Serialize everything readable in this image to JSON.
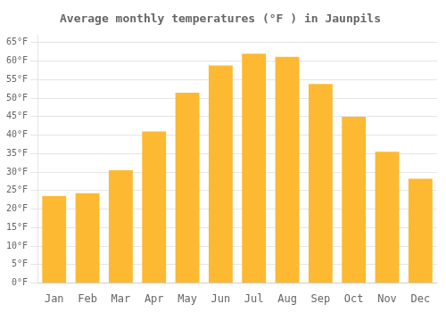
{
  "chart_data": {
    "type": "bar",
    "title": "Average monthly temperatures (°F ) in Jaunpils",
    "categories": [
      "Jan",
      "Feb",
      "Mar",
      "Apr",
      "May",
      "Jun",
      "Jul",
      "Aug",
      "Sep",
      "Oct",
      "Nov",
      "Dec"
    ],
    "values": [
      23.5,
      24.3,
      30.5,
      41.0,
      51.5,
      58.8,
      62.0,
      61.2,
      53.8,
      45.0,
      35.5,
      28.2
    ],
    "color": "#FDB931",
    "ylim": [
      0,
      67
    ],
    "yticks": [
      {
        "value": 0,
        "label": "0°F"
      },
      {
        "value": 5,
        "label": "5°F"
      },
      {
        "value": 10,
        "label": "10°F"
      },
      {
        "value": 15,
        "label": "15°F"
      },
      {
        "value": 20,
        "label": "20°F"
      },
      {
        "value": 25,
        "label": "25°F"
      },
      {
        "value": 30,
        "label": "30°F"
      },
      {
        "value": 35,
        "label": "35°F"
      },
      {
        "value": 40,
        "label": "40°F"
      },
      {
        "value": 45,
        "label": "45°F"
      },
      {
        "value": 50,
        "label": "50°F"
      },
      {
        "value": 55,
        "label": "55°F"
      },
      {
        "value": 60,
        "label": "60°F"
      },
      {
        "value": 65,
        "label": "65°F"
      }
    ],
    "grid": true
  }
}
